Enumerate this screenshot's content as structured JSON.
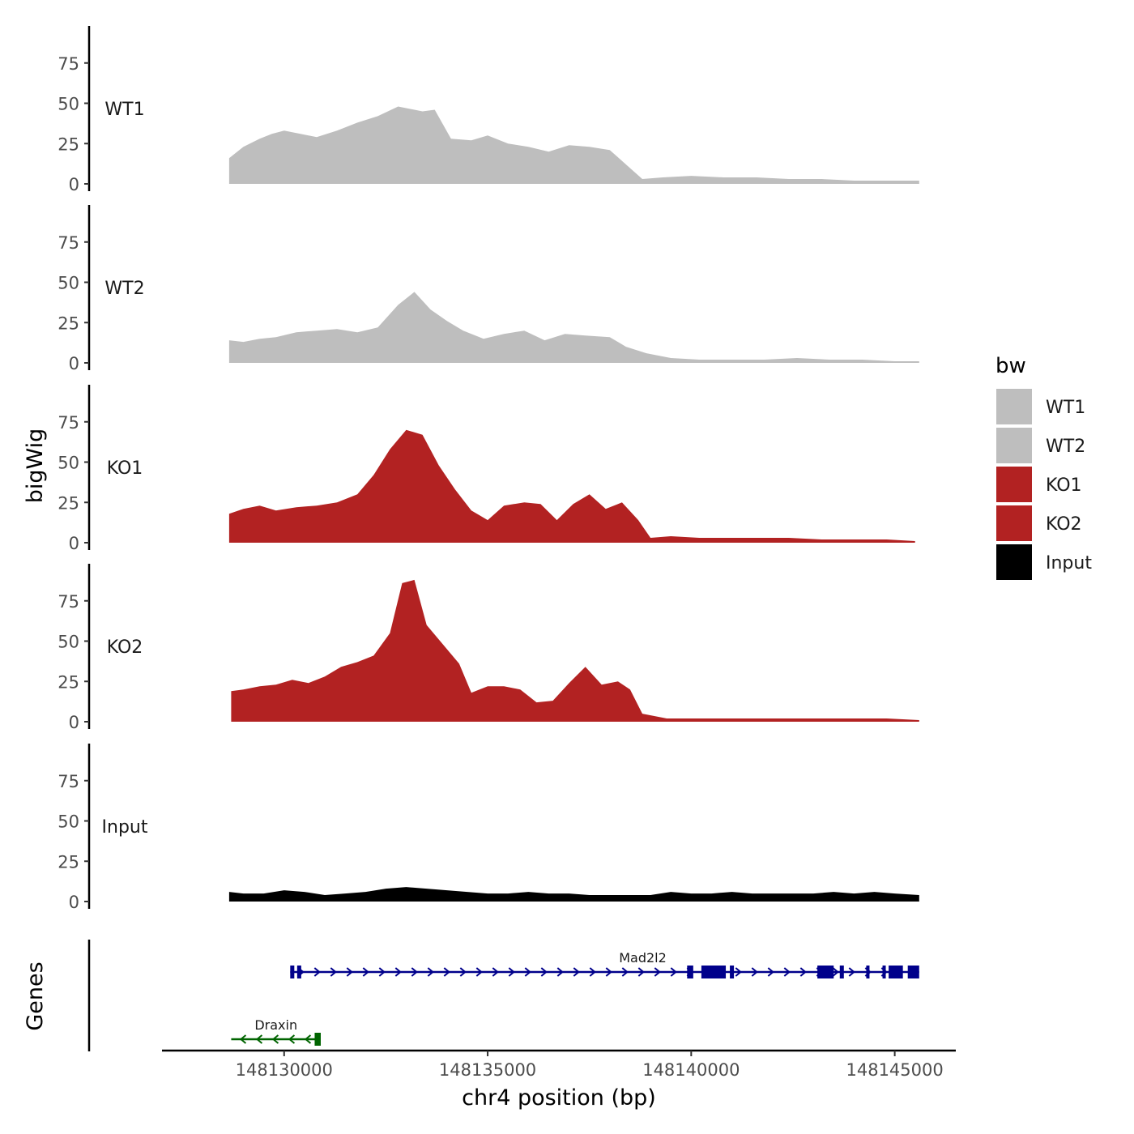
{
  "chart_data": {
    "type": "area",
    "title": "",
    "xlabel": "chr4 position (bp)",
    "ylabel": "bigWig",
    "genes_label": "Genes",
    "xlim": [
      148127000,
      148146500
    ],
    "xticks": [
      148130000,
      148135000,
      148140000,
      148145000
    ],
    "xtick_labels": [
      "148130000",
      "148135000",
      "148140000",
      "148145000"
    ],
    "ylim": [
      0,
      98
    ],
    "yticks": [
      0,
      25,
      50,
      75
    ],
    "ytick_labels": [
      "0",
      "25",
      "50",
      "75"
    ],
    "legend": {
      "title": "bw",
      "position": "right",
      "entries": [
        {
          "label": "WT1",
          "color": "#bebebe"
        },
        {
          "label": "WT2",
          "color": "#bebebe"
        },
        {
          "label": "KO1",
          "color": "#b22222"
        },
        {
          "label": "KO2",
          "color": "#b22222"
        },
        {
          "label": "Input",
          "color": "#000000"
        }
      ]
    },
    "series": [
      {
        "name": "WT1",
        "color": "#bebebe",
        "x": [
          148128650,
          148129000,
          148129400,
          148129700,
          148130000,
          148130400,
          148130800,
          148131300,
          148131800,
          148132300,
          148132800,
          148133400,
          148133700,
          148134100,
          148134600,
          148135000,
          148135500,
          148136000,
          148136500,
          148137000,
          148137500,
          148138000,
          148138400,
          148138800,
          148139300,
          148140000,
          148140800,
          148141600,
          148142400,
          148143200,
          148144000,
          148144800,
          148145600
        ],
        "y": [
          16,
          23,
          28,
          31,
          33,
          31,
          29,
          33,
          38,
          42,
          48,
          45,
          46,
          28,
          27,
          30,
          25,
          23,
          20,
          24,
          23,
          21,
          12,
          3,
          4,
          5,
          4,
          4,
          3,
          3,
          2,
          2,
          2
        ]
      },
      {
        "name": "WT2",
        "color": "#bebebe",
        "x": [
          148128650,
          148129000,
          148129400,
          148129800,
          148130300,
          148130800,
          148131300,
          148131800,
          148132300,
          148132800,
          148133200,
          148133600,
          148134000,
          148134400,
          148134900,
          148135400,
          148135900,
          148136400,
          148136900,
          148137400,
          148138000,
          148138400,
          148138900,
          148139500,
          148140200,
          148141000,
          148141800,
          148142600,
          148143400,
          148144200,
          148145000,
          148145600
        ],
        "y": [
          14,
          13,
          15,
          16,
          19,
          20,
          21,
          19,
          22,
          36,
          44,
          33,
          26,
          20,
          15,
          18,
          20,
          14,
          18,
          17,
          16,
          10,
          6,
          3,
          2,
          2,
          2,
          3,
          2,
          2,
          1,
          1
        ]
      },
      {
        "name": "KO1",
        "color": "#b22222",
        "x": [
          148128650,
          148129000,
          148129400,
          148129800,
          148130300,
          148130800,
          148131300,
          148131800,
          148132200,
          148132600,
          148133000,
          148133400,
          148133800,
          148134200,
          148134600,
          148135000,
          148135400,
          148135900,
          148136300,
          148136700,
          148137100,
          148137500,
          148137900,
          148138300,
          148138700,
          148139000,
          148139500,
          148140200,
          148140900,
          148141600,
          148142400,
          148143200,
          148144000,
          148144800,
          148145500
        ],
        "y": [
          18,
          21,
          23,
          20,
          22,
          23,
          25,
          30,
          42,
          58,
          70,
          67,
          48,
          33,
          20,
          14,
          23,
          25,
          24,
          14,
          24,
          30,
          21,
          25,
          14,
          3,
          4,
          3,
          3,
          3,
          3,
          2,
          2,
          2,
          1
        ]
      },
      {
        "name": "KO2",
        "color": "#b22222",
        "x": [
          148128700,
          148129000,
          148129400,
          148129800,
          148130200,
          148130600,
          148131000,
          148131400,
          148131800,
          148132200,
          148132600,
          148132900,
          148133200,
          148133500,
          148133900,
          148134300,
          148134600,
          148135000,
          148135400,
          148135800,
          148136200,
          148136600,
          148137000,
          148137400,
          148137800,
          148138200,
          148138500,
          148138800,
          148139400,
          148140100,
          148140800,
          148141600,
          148142400,
          148143200,
          148144000,
          148144800,
          148145600
        ],
        "y": [
          19,
          20,
          22,
          23,
          26,
          24,
          28,
          34,
          37,
          41,
          55,
          86,
          88,
          60,
          48,
          36,
          18,
          22,
          22,
          20,
          12,
          13,
          24,
          34,
          23,
          25,
          20,
          5,
          2,
          2,
          2,
          2,
          2,
          2,
          2,
          2,
          1
        ]
      },
      {
        "name": "Input",
        "color": "#000000",
        "x": [
          148128650,
          148129000,
          148129500,
          148130000,
          148130500,
          148131000,
          148131500,
          148132000,
          148132500,
          148133000,
          148133500,
          148134000,
          148134500,
          148135000,
          148135500,
          148136000,
          148136500,
          148137000,
          148137500,
          148138000,
          148138500,
          148139000,
          148139500,
          148140000,
          148140500,
          148141000,
          148141500,
          148142000,
          148142500,
          148143000,
          148143500,
          148144000,
          148144500,
          148145000,
          148145600
        ],
        "y": [
          6,
          5,
          5,
          7,
          6,
          4,
          5,
          6,
          8,
          9,
          8,
          7,
          6,
          5,
          5,
          6,
          5,
          5,
          4,
          4,
          4,
          4,
          6,
          5,
          5,
          6,
          5,
          5,
          5,
          5,
          6,
          5,
          6,
          5,
          4
        ]
      }
    ],
    "genes": [
      {
        "name": "Mad2l2",
        "strand": "+",
        "color": "#00008b",
        "start": 148130150,
        "end": 148145600,
        "exons": [
          [
            148130150,
            148130250
          ],
          [
            148130320,
            148130420
          ],
          [
            148139900,
            148140050
          ],
          [
            148140250,
            148140850
          ],
          [
            148140950,
            148141050
          ],
          [
            148143100,
            148143500
          ],
          [
            148143650,
            148143750
          ],
          [
            148144300,
            148144380
          ],
          [
            148144700,
            148144760
          ],
          [
            148144850,
            148145200
          ],
          [
            148145320,
            148145600
          ]
        ]
      },
      {
        "name": "Draxin",
        "strand": "-",
        "color": "#006400",
        "start": 148128700,
        "end": 148130900,
        "exons": [
          [
            148130750,
            148130900
          ]
        ]
      }
    ]
  }
}
